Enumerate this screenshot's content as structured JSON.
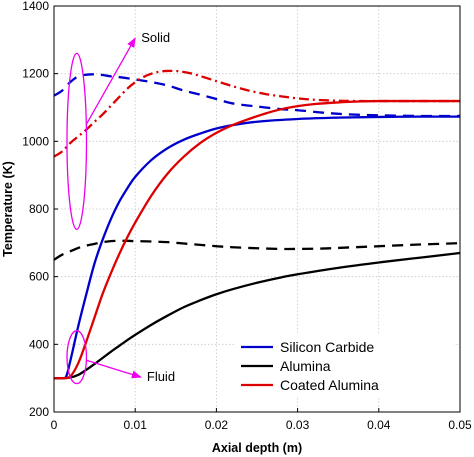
{
  "chart_data": {
    "type": "line",
    "xlabel": "Axial depth (m)",
    "ylabel": "Temperature (K)",
    "xlim": [
      0,
      0.05
    ],
    "ylim": [
      200,
      1400
    ],
    "x_ticks": [
      0,
      0.01,
      0.02,
      0.03,
      0.04,
      0.05
    ],
    "x_tick_labels": [
      "0",
      "0.01",
      "0.02",
      "0.03",
      "0.04",
      "0.05"
    ],
    "y_ticks": [
      200,
      400,
      600,
      800,
      1000,
      1200,
      1400
    ],
    "y_tick_labels": [
      "200",
      "400",
      "600",
      "800",
      "1000",
      "1200",
      "1400"
    ],
    "grid": true,
    "legend_position": "bottom-right",
    "legend": [
      {
        "label": "Silicon Carbide",
        "color": "#0000cc"
      },
      {
        "label": "Alumina",
        "color": "#000000"
      },
      {
        "label": "Coated Alumina",
        "color": "#dd0000"
      }
    ],
    "annotations": [
      {
        "text": "Solid",
        "ellipse_center": [
          0.0028,
          1000
        ],
        "ellipse_radius": [
          0.0012,
          260
        ],
        "arrow_to": [
          0.01,
          1305
        ]
      },
      {
        "text": "Fluid",
        "ellipse_center": [
          0.0028,
          362
        ],
        "ellipse_radius": [
          0.0012,
          78
        ],
        "arrow_to": [
          0.0107,
          303
        ]
      }
    ],
    "annotation_color": "#ee00ee",
    "series": [
      {
        "material": "Silicon Carbide",
        "phase": "solid",
        "style": "dashed",
        "color": "#0000cc",
        "x": [
          0,
          0.001,
          0.002,
          0.003,
          0.004,
          0.005,
          0.006,
          0.007,
          0.008,
          0.01,
          0.012,
          0.014,
          0.016,
          0.018,
          0.02,
          0.022,
          0.025,
          0.028,
          0.03,
          0.033,
          0.036,
          0.04,
          0.045,
          0.05
        ],
        "y": [
          1135,
          1150,
          1175,
          1192,
          1197,
          1198,
          1196,
          1192,
          1190,
          1183,
          1175,
          1165,
          1150,
          1138,
          1125,
          1112,
          1103,
          1095,
          1092,
          1085,
          1080,
          1077,
          1075,
          1075
        ]
      },
      {
        "material": "Silicon Carbide",
        "phase": "fluid",
        "style": "solid",
        "color": "#0000cc",
        "x": [
          0,
          0.001,
          0.0015,
          0.002,
          0.003,
          0.004,
          0.005,
          0.006,
          0.007,
          0.008,
          0.009,
          0.01,
          0.012,
          0.014,
          0.016,
          0.018,
          0.02,
          0.022,
          0.025,
          0.03,
          0.035,
          0.04,
          0.045,
          0.05
        ],
        "y": [
          300,
          300,
          305,
          350,
          455,
          550,
          640,
          710,
          770,
          820,
          860,
          895,
          945,
          980,
          1005,
          1023,
          1038,
          1048,
          1058,
          1066,
          1070,
          1072,
          1073,
          1073
        ]
      },
      {
        "material": "Alumina",
        "phase": "solid",
        "style": "dashed",
        "color": "#000000",
        "x": [
          0,
          0.001,
          0.002,
          0.003,
          0.004,
          0.005,
          0.006,
          0.007,
          0.008,
          0.009,
          0.01,
          0.012,
          0.014,
          0.016,
          0.018,
          0.02,
          0.022,
          0.025,
          0.028,
          0.03,
          0.033,
          0.036,
          0.04,
          0.045,
          0.05
        ],
        "y": [
          650,
          665,
          675,
          685,
          692,
          697,
          702,
          705,
          706,
          706,
          705,
          704,
          702,
          698,
          694,
          690,
          687,
          684,
          682,
          682,
          683,
          686,
          690,
          695,
          699
        ]
      },
      {
        "material": "Alumina",
        "phase": "fluid",
        "style": "solid",
        "color": "#000000",
        "x": [
          0,
          0.001,
          0.002,
          0.003,
          0.004,
          0.005,
          0.006,
          0.007,
          0.008,
          0.009,
          0.01,
          0.012,
          0.014,
          0.016,
          0.018,
          0.02,
          0.022,
          0.025,
          0.028,
          0.03,
          0.035,
          0.04,
          0.045,
          0.05
        ],
        "y": [
          300,
          300,
          302,
          310,
          325,
          342,
          360,
          378,
          395,
          412,
          428,
          458,
          485,
          510,
          530,
          548,
          563,
          582,
          598,
          607,
          626,
          642,
          656,
          670
        ]
      },
      {
        "material": "Coated Alumina",
        "phase": "solid",
        "style": "dashdot",
        "color": "#dd0000",
        "x": [
          0,
          0.001,
          0.002,
          0.003,
          0.004,
          0.005,
          0.006,
          0.007,
          0.008,
          0.009,
          0.01,
          0.011,
          0.012,
          0.013,
          0.014,
          0.015,
          0.016,
          0.017,
          0.018,
          0.02,
          0.022,
          0.024,
          0.026,
          0.028,
          0.03,
          0.032,
          0.035,
          0.038,
          0.04,
          0.045,
          0.05
        ],
        "y": [
          955,
          970,
          995,
          1015,
          1035,
          1058,
          1080,
          1105,
          1130,
          1155,
          1175,
          1190,
          1200,
          1206,
          1208,
          1208,
          1205,
          1200,
          1193,
          1178,
          1163,
          1150,
          1140,
          1133,
          1127,
          1123,
          1120,
          1119,
          1119,
          1119,
          1119
        ]
      },
      {
        "material": "Coated Alumina",
        "phase": "fluid",
        "style": "solid",
        "color": "#dd0000",
        "x": [
          0,
          0.001,
          0.002,
          0.003,
          0.004,
          0.005,
          0.006,
          0.007,
          0.008,
          0.009,
          0.01,
          0.012,
          0.014,
          0.016,
          0.018,
          0.02,
          0.022,
          0.024,
          0.026,
          0.028,
          0.03,
          0.032,
          0.035,
          0.038,
          0.04,
          0.045,
          0.05
        ],
        "y": [
          300,
          300,
          305,
          345,
          410,
          480,
          550,
          610,
          665,
          715,
          760,
          840,
          905,
          955,
          995,
          1025,
          1048,
          1066,
          1082,
          1095,
          1104,
          1110,
          1115,
          1118,
          1119,
          1119,
          1119
        ]
      }
    ]
  }
}
